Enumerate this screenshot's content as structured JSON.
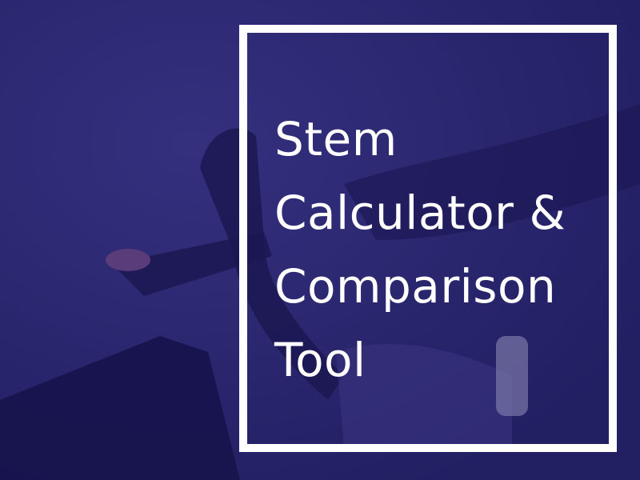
{
  "title": {
    "lines": [
      "Stem",
      "Calculator &",
      "Comparison",
      "Tool"
    ]
  },
  "colors": {
    "overlay": "#2b2872",
    "frame": "#ffffff",
    "text": "#ffffff"
  }
}
